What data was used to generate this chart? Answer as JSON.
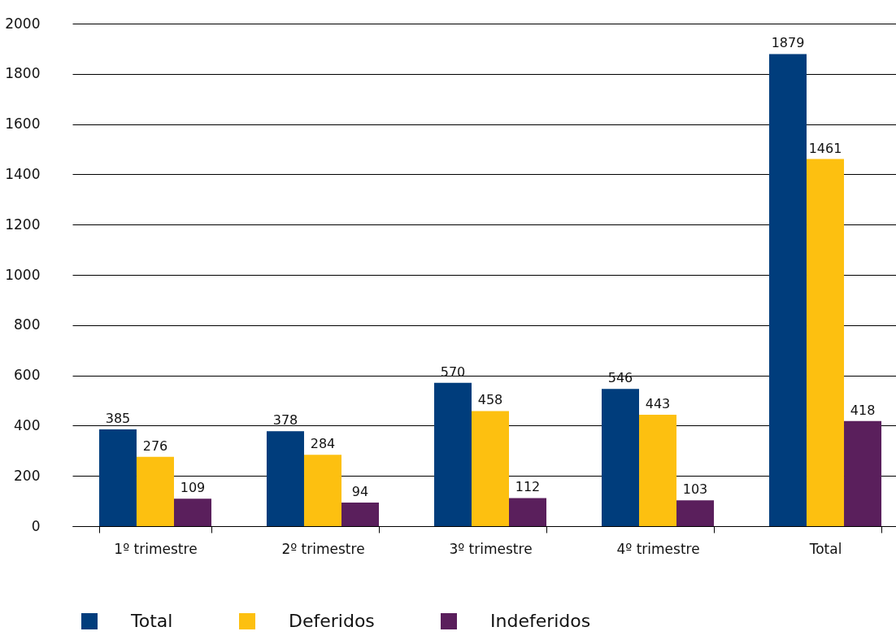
{
  "chart_data": {
    "type": "bar",
    "categories": [
      "1º trimestre",
      "2º trimestre",
      "3º trimestre",
      "4º trimestre",
      "Total"
    ],
    "series": [
      {
        "name": "Total",
        "color": "#003d7c",
        "values": [
          385,
          378,
          570,
          546,
          1879
        ]
      },
      {
        "name": "Deferidos",
        "color": "#fdc010",
        "values": [
          276,
          284,
          458,
          443,
          1461
        ]
      },
      {
        "name": "Indeferidos",
        "color": "#5a1f5c",
        "values": [
          109,
          94,
          112,
          103,
          418
        ]
      }
    ],
    "ylim": [
      0,
      2000
    ],
    "yticks": [
      0,
      200,
      400,
      600,
      800,
      1000,
      1200,
      1400,
      1600,
      1800,
      2000
    ],
    "grid": "y",
    "legend": "bottom",
    "data_labels": true
  }
}
